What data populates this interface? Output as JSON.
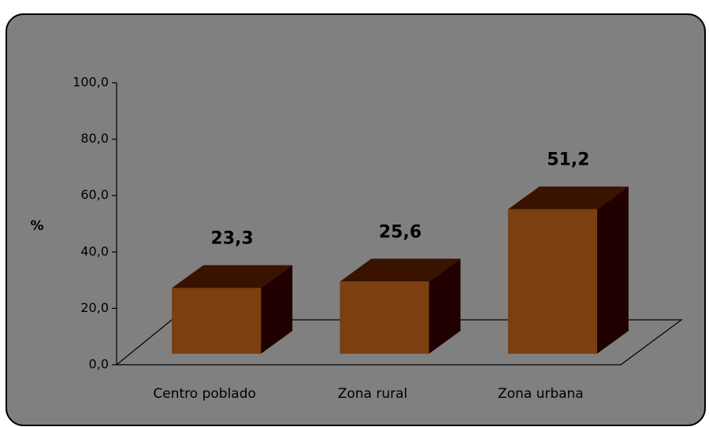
{
  "chart_data": {
    "type": "bar3d",
    "y_label": "%",
    "categories": [
      "Centro poblado",
      "Zona rural",
      "Zona urbana"
    ],
    "values": [
      23.3,
      25.6,
      51.2
    ],
    "value_labels": [
      "23,3",
      "25,6",
      "51,2"
    ],
    "colors": {
      "front": "#7b3f10",
      "top": "#3a1200",
      "side": "#200000"
    },
    "ylim": [
      0,
      100
    ],
    "yticks": [
      {
        "value": 0,
        "label": "0,0"
      },
      {
        "value": 20,
        "label": "20,0"
      },
      {
        "value": 40,
        "label": "40,0"
      },
      {
        "value": 60,
        "label": "60,0"
      },
      {
        "value": 80,
        "label": "80,0"
      },
      {
        "value": 100,
        "label": "100,0"
      }
    ]
  }
}
